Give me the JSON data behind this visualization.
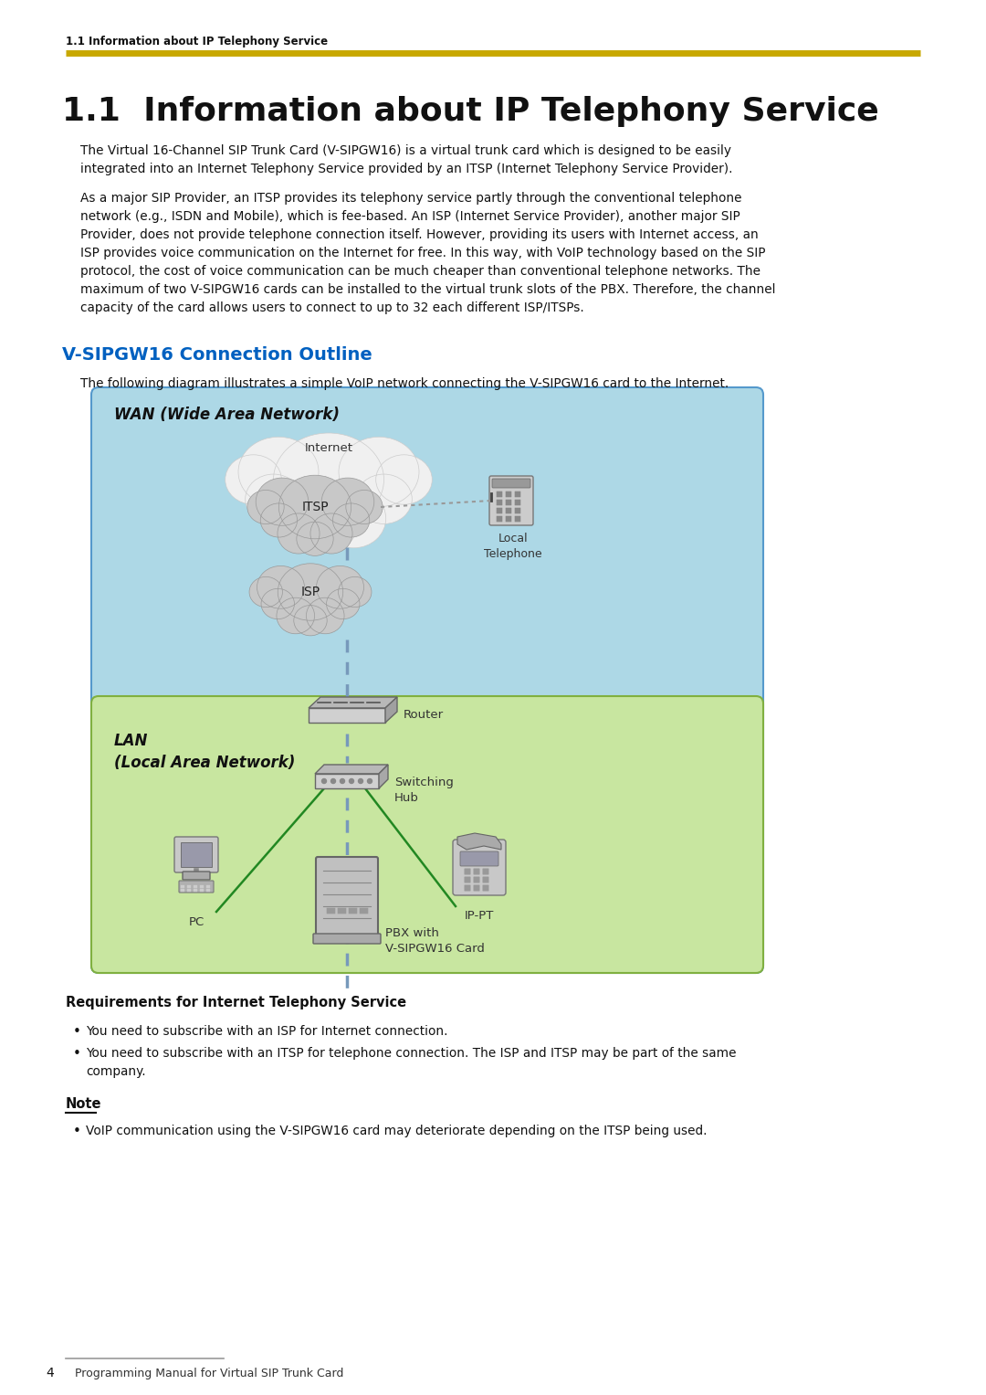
{
  "page_bg": "#ffffff",
  "header_text": "1.1 Information about IP Telephony Service",
  "header_line_color": "#c8a800",
  "title": "1.1  Information about IP Telephony Service",
  "para1": "The Virtual 16-Channel SIP Trunk Card (V-SIPGW16) is a virtual trunk card which is designed to be easily\nintegrated into an Internet Telephony Service provided by an ITSP (Internet Telephony Service Provider).",
  "para2": "As a major SIP Provider, an ITSP provides its telephony service partly through the conventional telephone\nnetwork (e.g., ISDN and Mobile), which is fee-based. An ISP (Internet Service Provider), another major SIP\nProvider, does not provide telephone connection itself. However, providing its users with Internet access, an\nISP provides voice communication on the Internet for free. In this way, with VoIP technology based on the SIP\nprotocol, the cost of voice communication can be much cheaper than conventional telephone networks. The\nmaximum of two V-SIPGW16 cards can be installed to the virtual trunk slots of the PBX. Therefore, the channel\ncapacity of the card allows users to connect to up to 32 each different ISP/ITSPs.",
  "section_title": "V-SIPGW16 Connection Outline",
  "section_title_color": "#0060c0",
  "diagram_desc": "The following diagram illustrates a simple VoIP network connecting the V-SIPGW16 card to the Internet.",
  "wan_bg": "#add8e6",
  "wan_border": "#5599cc",
  "lan_bg": "#c8e6a0",
  "lan_border": "#80b040",
  "wan_label": "WAN (Wide Area Network)",
  "lan_label": "LAN\n(Local Area Network)",
  "req_title": "Requirements for Internet Telephony Service",
  "req_bullet1": "You need to subscribe with an ISP for Internet connection.",
  "req_bullet2": "You need to subscribe with an ITSP for telephone connection. The ISP and ITSP may be part of the same\ncompany.",
  "note_title": "Note",
  "note_bullet": "VoIP communication using the V-SIPGW16 card may deteriorate depending on the ITSP being used.",
  "footer_page": "4",
  "footer_text": "Programming Manual for Virtual SIP Trunk Card",
  "footer_line_color": "#888888",
  "cloud_white": "#f0f0f0",
  "cloud_gray": "#c8c8c8",
  "cloud_dark": "#b8b8b8",
  "device_gray": "#b8b8b8",
  "device_light": "#d0d0d0",
  "line_blue": "#7799bb",
  "line_green": "#228822",
  "line_dotted_gray": "#999999"
}
